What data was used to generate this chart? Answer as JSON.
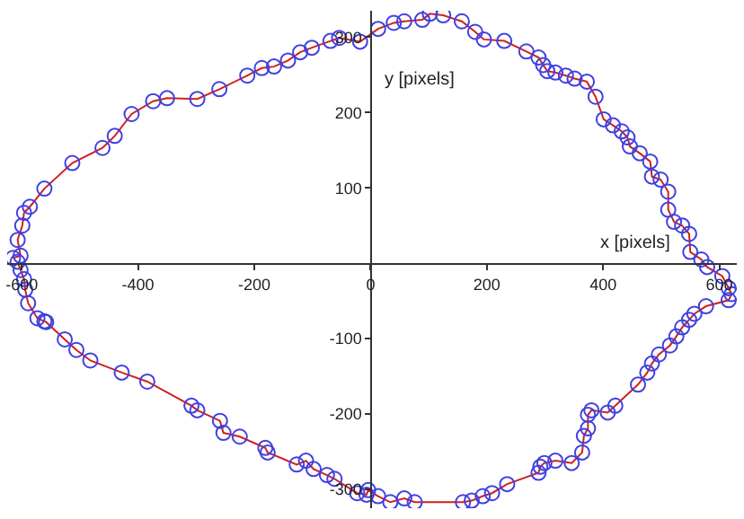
{
  "chart_data": {
    "type": "line",
    "xlabel": "x [pixels]",
    "ylabel": "y [pixels]",
    "xlim": [
      -625,
      630
    ],
    "ylim": [
      -325,
      335
    ],
    "xticks": [
      -600,
      -400,
      -200,
      0,
      200,
      400,
      600
    ],
    "yticks": [
      -300,
      -200,
      -100,
      100,
      200,
      300
    ],
    "grid": false,
    "legend": false,
    "series": [
      {
        "color": "#d02020",
        "marker": "none",
        "line_style": "solid",
        "x": [
          -615,
          -602,
          -607,
          -599,
          -596,
          -586,
          -561,
          -513,
          -461,
          -440,
          -411,
          -374,
          -350,
          -298,
          -260,
          -212,
          -187,
          -166,
          -142,
          -121,
          -101,
          -69,
          -54,
          -18,
          13,
          40,
          58,
          89,
          102,
          125,
          157,
          180,
          195,
          230,
          268,
          289,
          297,
          304,
          318,
          336,
          351,
          372,
          387,
          401,
          417,
          432,
          442,
          446,
          463,
          481,
          484,
          499,
          512,
          512,
          522,
          536,
          548,
          550,
          569,
          579,
          605,
          616,
          621,
          616,
          577,
          557,
          548,
          536,
          526,
          515,
          496,
          484,
          476,
          460,
          421,
          408,
          380,
          374,
          374,
          367,
          364,
          346,
          318,
          299,
          292,
          289,
          235,
          209,
          193,
          174,
          159,
          76,
          58,
          34,
          13,
          -4,
          -7,
          -23,
          -62,
          -75,
          -98,
          -111,
          -127,
          -177,
          -181,
          -225,
          -253,
          -259,
          -298,
          -308,
          -384,
          -428,
          -482,
          -506,
          -526,
          -558,
          -561,
          -573,
          -589,
          -594,
          -596,
          -602,
          -607
        ],
        "values": [
          7,
          10,
          31,
          50,
          67,
          75,
          99,
          133,
          153,
          169,
          198,
          215,
          219,
          218,
          231,
          249,
          259,
          261,
          269,
          280,
          286,
          295,
          299,
          294,
          311,
          319,
          321,
          323,
          331,
          329,
          321,
          307,
          297,
          295,
          281,
          273,
          263,
          255,
          253,
          249,
          245,
          241,
          221,
          191,
          183,
          175,
          167,
          155,
          146,
          135,
          115,
          111,
          95,
          71,
          55,
          50,
          39,
          15,
          5,
          -5,
          -17,
          -33,
          -41,
          -49,
          -57,
          -67,
          -75,
          -85,
          -97,
          -109,
          -121,
          -133,
          -145,
          -161,
          -189,
          -198,
          -195,
          -201,
          -219,
          -229,
          -251,
          -265,
          -262,
          -265,
          -270,
          -278,
          -293,
          -305,
          -309,
          -315,
          -317,
          -317,
          -312,
          -317,
          -309,
          -301,
          -307,
          -305,
          -286,
          -281,
          -273,
          -262,
          -267,
          -251,
          -245,
          -230,
          -225,
          -209,
          -195,
          -189,
          -157,
          -145,
          -129,
          -115,
          -101,
          -78,
          -77,
          -73,
          -53,
          -35,
          -21,
          -9,
          2
        ]
      },
      {
        "type": "scatter",
        "color": "#4040e0",
        "marker": "circle",
        "x": [
          -615,
          -602,
          -607,
          -599,
          -596,
          -586,
          -561,
          -513,
          -461,
          -440,
          -411,
          -374,
          -350,
          -298,
          -260,
          -212,
          -187,
          -166,
          -142,
          -121,
          -101,
          -69,
          -54,
          -18,
          13,
          40,
          58,
          89,
          102,
          125,
          157,
          180,
          195,
          230,
          268,
          289,
          297,
          304,
          318,
          336,
          351,
          372,
          387,
          401,
          417,
          432,
          442,
          446,
          463,
          481,
          484,
          499,
          512,
          512,
          522,
          536,
          548,
          550,
          569,
          579,
          605,
          616,
          621,
          616,
          577,
          557,
          548,
          536,
          526,
          515,
          496,
          484,
          476,
          460,
          421,
          408,
          380,
          374,
          374,
          367,
          364,
          346,
          318,
          299,
          292,
          289,
          235,
          209,
          193,
          174,
          159,
          76,
          58,
          34,
          13,
          -4,
          -7,
          -23,
          -62,
          -75,
          -98,
          -111,
          -127,
          -177,
          -181,
          -225,
          -253,
          -259,
          -298,
          -308,
          -384,
          -428,
          -482,
          -506,
          -526,
          -558,
          -561,
          -573,
          -589,
          -594,
          -596,
          -602,
          -607
        ],
        "values": [
          7,
          10,
          31,
          50,
          67,
          75,
          99,
          133,
          153,
          169,
          198,
          215,
          219,
          218,
          231,
          249,
          259,
          261,
          269,
          280,
          286,
          295,
          299,
          294,
          311,
          319,
          321,
          323,
          331,
          329,
          321,
          307,
          297,
          295,
          281,
          273,
          263,
          255,
          253,
          249,
          245,
          241,
          221,
          191,
          183,
          175,
          167,
          155,
          146,
          135,
          115,
          111,
          95,
          71,
          55,
          50,
          39,
          15,
          5,
          -5,
          -17,
          -33,
          -41,
          -49,
          -57,
          -67,
          -75,
          -85,
          -97,
          -109,
          -121,
          -133,
          -145,
          -161,
          -189,
          -198,
          -195,
          -201,
          -219,
          -229,
          -251,
          -265,
          -262,
          -265,
          -270,
          -278,
          -293,
          -305,
          -309,
          -315,
          -317,
          -317,
          -312,
          -317,
          -309,
          -301,
          -307,
          -305,
          -286,
          -281,
          -273,
          -262,
          -267,
          -251,
          -245,
          -230,
          -225,
          -209,
          -195,
          -189,
          -157,
          -145,
          -129,
          -115,
          -101,
          -78,
          -77,
          -73,
          -53,
          -35,
          -21,
          -9,
          2
        ]
      }
    ]
  }
}
